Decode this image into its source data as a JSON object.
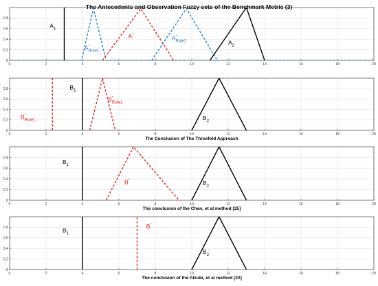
{
  "figure": {
    "title": "The Antecedents and Observation Fuzzy sets of the Benchmark Metric (3)"
  },
  "colors": {
    "black": "#000000",
    "red": "#e0201b",
    "blue": "#1a7fd0",
    "axis": "#444444",
    "grid": "#e2e2e2"
  },
  "chart_data": [
    {
      "type": "line",
      "xlim": [
        0,
        20
      ],
      "ylim": [
        0,
        1
      ],
      "xticks": [
        0,
        2,
        4,
        6,
        8,
        10,
        12,
        14,
        16,
        18,
        20
      ],
      "yticks": [
        0,
        0.2,
        0.4,
        0.6,
        0.8
      ],
      "caption": "",
      "series": [
        {
          "name": "A1",
          "color": "black",
          "dash": false,
          "x": [
            3,
            3
          ],
          "y": [
            0,
            1
          ]
        },
        {
          "name": "A*Rule1",
          "color": "blue",
          "dash": true,
          "x": [
            -1,
            3.95,
            4.6,
            5.3,
            21
          ],
          "y": [
            0,
            0,
            0.98,
            0,
            0
          ]
        },
        {
          "name": "A*",
          "color": "red",
          "dash": true,
          "x": [
            5.1,
            7.2,
            9
          ],
          "y": [
            0,
            0.98,
            0
          ]
        },
        {
          "name": "A*Rule2",
          "color": "blue",
          "dash": true,
          "x": [
            7.8,
            9.7,
            11.4
          ],
          "y": [
            0,
            0.98,
            0
          ]
        },
        {
          "name": "A2",
          "color": "black",
          "dash": false,
          "x": [
            11,
            13,
            14
          ],
          "y": [
            0,
            1,
            0
          ]
        }
      ],
      "labels": [
        {
          "text": "A",
          "sub": "1",
          "sup": "",
          "x": 2.2,
          "y": 0.62,
          "color": "black"
        },
        {
          "text": "A",
          "sub": "Rule1",
          "sup": "*",
          "x": 4.1,
          "y": 0.2,
          "color": "blue"
        },
        {
          "text": "A",
          "sub": "",
          "sup": "*",
          "x": 6.5,
          "y": 0.42,
          "color": "red"
        },
        {
          "text": "A",
          "sub": "Rule2",
          "sup": "*",
          "x": 8.9,
          "y": 0.38,
          "color": "blue"
        },
        {
          "text": "A",
          "sub": "2",
          "sup": "",
          "x": 12.0,
          "y": 0.3,
          "color": "black"
        }
      ]
    },
    {
      "type": "line",
      "xlim": [
        0,
        20
      ],
      "ylim": [
        0,
        1
      ],
      "xticks": [
        0,
        2,
        4,
        6,
        8,
        10,
        12,
        14,
        16,
        18,
        20
      ],
      "yticks": [
        0,
        0.2,
        0.4,
        0.6,
        0.8
      ],
      "caption": "The Conclusion of The Threefold Approach",
      "series": [
        {
          "name": "B*Rule1",
          "color": "red",
          "dash": true,
          "x": [
            2.35,
            2.35
          ],
          "y": [
            0,
            1
          ]
        },
        {
          "name": "B1",
          "color": "black",
          "dash": false,
          "x": [
            4,
            4
          ],
          "y": [
            0,
            1
          ]
        },
        {
          "name": "B*Rule2",
          "color": "red",
          "dash": true,
          "x": [
            4.4,
            5.1,
            5.8
          ],
          "y": [
            0,
            1,
            0
          ]
        },
        {
          "name": "B2",
          "color": "black",
          "dash": false,
          "x": [
            10,
            11.5,
            13
          ],
          "y": [
            0,
            1,
            0
          ]
        }
      ],
      "labels": [
        {
          "text": "B",
          "sub": "Rule1",
          "sup": "*",
          "x": 0.6,
          "y": 0.22,
          "color": "red"
        },
        {
          "text": "B",
          "sub": "1",
          "sup": "",
          "x": 3.3,
          "y": 0.78,
          "color": "black"
        },
        {
          "text": "B",
          "sub": "Rule2",
          "sup": "*",
          "x": 5.4,
          "y": 0.55,
          "color": "red"
        },
        {
          "text": "B",
          "sub": "2",
          "sup": "",
          "x": 10.6,
          "y": 0.2,
          "color": "black"
        }
      ]
    },
    {
      "type": "line",
      "xlim": [
        0,
        20
      ],
      "ylim": [
        0,
        1
      ],
      "xticks": [
        0,
        2,
        4,
        6,
        8,
        10,
        12,
        14,
        16,
        18,
        20
      ],
      "yticks": [
        0,
        0.2,
        0.4,
        0.6,
        0.8
      ],
      "caption": "The conclusion of the Chen, et al method   [25]",
      "series": [
        {
          "name": "B1",
          "color": "black",
          "dash": false,
          "x": [
            4,
            4
          ],
          "y": [
            0,
            1
          ]
        },
        {
          "name": "B*",
          "color": "red",
          "dash": true,
          "x": [
            5.3,
            6.8,
            9.3
          ],
          "y": [
            0,
            1,
            0
          ]
        },
        {
          "name": "B2",
          "color": "black",
          "dash": false,
          "x": [
            10,
            11.5,
            13
          ],
          "y": [
            0,
            1,
            0
          ]
        }
      ],
      "labels": [
        {
          "text": "B",
          "sub": "1",
          "sup": "",
          "x": 2.9,
          "y": 0.68,
          "color": "black"
        },
        {
          "text": "B",
          "sub": "",
          "sup": "*",
          "x": 6.3,
          "y": 0.3,
          "color": "red"
        },
        {
          "text": "B",
          "sub": "2",
          "sup": "",
          "x": 10.6,
          "y": 0.28,
          "color": "black"
        }
      ]
    },
    {
      "type": "line",
      "xlim": [
        0,
        20
      ],
      "ylim": [
        0,
        1
      ],
      "xticks": [
        0,
        2,
        4,
        6,
        8,
        10,
        12,
        14,
        16,
        18,
        20
      ],
      "yticks": [
        0,
        0.2,
        0.4,
        0.6,
        0.8
      ],
      "caption": "The conclusion of the Alzubi, et al method    [22]",
      "series": [
        {
          "name": "B1",
          "color": "black",
          "dash": false,
          "x": [
            4,
            4
          ],
          "y": [
            0,
            1
          ]
        },
        {
          "name": "B*",
          "color": "red",
          "dash": true,
          "x": [
            7,
            7
          ],
          "y": [
            0,
            1
          ]
        },
        {
          "name": "B2",
          "color": "black",
          "dash": false,
          "x": [
            10,
            11.5,
            13
          ],
          "y": [
            0,
            1,
            0
          ]
        }
      ],
      "labels": [
        {
          "text": "B",
          "sub": "1",
          "sup": "",
          "x": 2.9,
          "y": 0.7,
          "color": "black"
        },
        {
          "text": "B",
          "sub": "",
          "sup": "*",
          "x": 7.5,
          "y": 0.78,
          "color": "red"
        },
        {
          "text": "B",
          "sub": "2",
          "sup": "",
          "x": 10.6,
          "y": 0.3,
          "color": "black"
        }
      ]
    }
  ]
}
